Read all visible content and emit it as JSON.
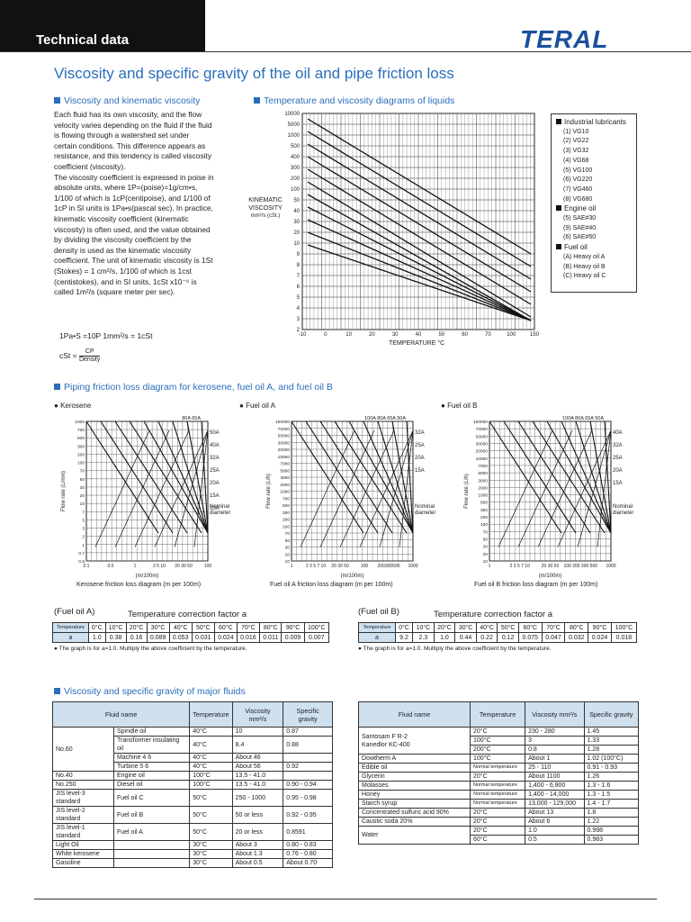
{
  "header": {
    "label": "Technical data",
    "logo": "TERAL"
  },
  "title": "Viscosity and specific gravity of the oil and pipe friction loss",
  "sections": {
    "visc": "Viscosity and kinematic viscosity",
    "temp_diag": "Temperature and viscosity diagrams of liquids",
    "piping": "Piping friction loss diagram for kerosene, fuel oil A, and fuel oil B",
    "major": "Viscosity and specific gravity of major fluids"
  },
  "body_text": [
    "Each fluid has its own viscosity, and the flow",
    "velocity varies depending on the fluid if the fluid",
    "is flowing through a watershed set under",
    "certain conditions. This difference appears as",
    "resistance, and this tendency is called viscosity",
    "coefficient (viscosity).",
    "The viscosity coefficient is expressed in poise in",
    "absolute units, where 1P=(poise)=1g/cm•s,",
    "1/100 of which is 1cP(centipoise), and 1/100 of",
    "1cP in SI units is 1Pa•s(pascal sec). In practice,",
    "kinematic viscosity coefficient (kinematic",
    "viscosity) is often used, and the value obtained",
    "by dividing the viscosity coefficient by the",
    "density is used as the kinematic viscosity",
    "coefficient. The unit of kinematic viscosity is 1St",
    "(Stokes) = 1 cm²/s, 1/100 of which is 1cst",
    "(centistokes), and in SI units,  1cSt x10⁻⁶ is",
    "called 1m²/s (square meter per sec)."
  ],
  "formula": {
    "line1": "1Pa•S =10P    1mm²/s = 1cSt",
    "cst": "cSt =",
    "num": "CP",
    "den": "Density"
  },
  "visc_chart": {
    "ylabel1": "KINEMATIC",
    "ylabel2": "VISCOSITY",
    "ylabel3": "mm²/s (cSt.)",
    "xlabel": "TEMPERATURE  °C",
    "yticks": [
      "10000",
      "5000",
      "1000",
      "500",
      "400",
      "300",
      "200",
      "100",
      "50",
      "40",
      "30",
      "20",
      "10",
      "9",
      "8",
      "7",
      "6",
      "5",
      "4",
      "3",
      "2"
    ],
    "xticks": [
      "-10",
      "0",
      "10",
      "20",
      "30",
      "40",
      "50",
      "60",
      "70",
      "100",
      "150"
    ]
  },
  "legend": {
    "industrial": "Industrial lubricants",
    "industrial_items": [
      "(1) VG10",
      "(2) VG22",
      "(3) VG32",
      "(4) VG68",
      "(5) VG100",
      "(6) VG220",
      "(7) VG460",
      "(8) VG680"
    ],
    "engine": "Engine oil",
    "engine_items": [
      "(5) SAE#30",
      "(9) SAE#40",
      "(6) SAE#50"
    ],
    "fuel": "Fuel oil",
    "fuel_items": [
      "(A) Heavy oil A",
      "(B) Heavy oil B",
      "(C) Heavy oil C"
    ]
  },
  "friction": {
    "kerosene": {
      "name": "Kerosene",
      "ylabel": "Flow rate (L/min)",
      "xlabel": "(m/100m)",
      "caption": "Kerosene friction loss diagram (m per 100m)",
      "nominal": [
        "Nominal",
        "diameter"
      ],
      "sizes": [
        "50A",
        "40A",
        "32A",
        "25A",
        "20A",
        "15A",
        "10A"
      ],
      "top_sizes": "80A  65A",
      "yticks": [
        "1000",
        "700",
        "500",
        "300",
        "200",
        "100",
        "70",
        "50",
        "30",
        "20",
        "10",
        "7",
        "5",
        "3",
        "2",
        "1",
        "0.7",
        "0.5"
      ],
      "xticks": [
        "0.1",
        "0.5",
        "1",
        "3  5  10",
        "20 30 50",
        "100"
      ]
    },
    "fuel_a": {
      "name": "Fuel oil A",
      "ylabel": "Flow rate (L/h)",
      "xlabel": "(m/100m)",
      "caption": "Fuel oil A friction loss diagram (m per 100m)",
      "nominal": [
        "Nominal",
        "diameter"
      ],
      "sizes": [
        "32A",
        "25A",
        "20A",
        "15A"
      ],
      "top_sizes": "100A  80A 65A  50A",
      "yticks": [
        "100000",
        "70000",
        "50000",
        "30000",
        "20000",
        "10000",
        "7000",
        "5000",
        "3000",
        "2000",
        "1000",
        "700",
        "500",
        "300",
        "200",
        "100",
        "70",
        "50",
        "30",
        "20",
        "10"
      ],
      "xticks": [
        "1",
        "2  3  5  7 10",
        "20 30  50",
        "100",
        "200300500",
        "1000"
      ]
    },
    "fuel_b": {
      "name": "Fuel oil B",
      "ylabel": "Flow rate (L/h)",
      "xlabel": "(m/100m)",
      "caption": "Fuel oil B friction loss diagram (m per 100m)",
      "nominal": [
        "Nominal",
        "diameter"
      ],
      "sizes": [
        "40A",
        "32A",
        "25A",
        "20A",
        "15A"
      ],
      "top_sizes": "100A  80A 65A   50A",
      "yticks": [
        "100000",
        "70000",
        "50000",
        "30000",
        "20000",
        "10000",
        "7000",
        "5000",
        "3000",
        "2000",
        "1000",
        "500",
        "300",
        "200",
        "100",
        "70",
        "50",
        "30",
        "20",
        "10"
      ],
      "xticks": [
        "1",
        "2  3  5 7 10",
        "20 30 50",
        "100 200 300 500",
        "1000"
      ]
    }
  },
  "tcf_a": {
    "label": "(Fuel oil A)",
    "title": "Temperature correction factor a",
    "header": [
      "Temperature",
      "0°C",
      "10°C",
      "20°C",
      "30°C",
      "40°C",
      "50°C",
      "60°C",
      "70°C",
      "80°C",
      "90°C",
      "100°C"
    ],
    "row": [
      "a",
      "1.0",
      "0.38",
      "0.16",
      "0.089",
      "0.053",
      "0.031",
      "0.024",
      "0.016",
      "0.011",
      "0.009",
      "0.007"
    ],
    "note": "The graph is for a=1.0. Multiply the above coefficient by the temperature."
  },
  "tcf_b": {
    "label": "(Fuel oil B)",
    "title": "Temperature correction factor a",
    "header": [
      "Temperature",
      "0°C",
      "10°C",
      "20°C",
      "30°C",
      "40°C",
      "50°C",
      "60°C",
      "70°C",
      "80°C",
      "90°C",
      "100°C"
    ],
    "row": [
      "a",
      "9.2",
      "2.3",
      "1.0",
      "0.44",
      "0.22",
      "0.12",
      "0.075",
      "0.047",
      "0.032",
      "0.024",
      "0.018"
    ],
    "note": "The graph is for a=1.0. Multiply the above coefficient by the temperature."
  },
  "fluids_left": {
    "header": [
      "Fluid name",
      "Temperature",
      "Viscosity mm²/s",
      "Specific gravity"
    ],
    "no60": "No.60",
    "no60_rows": [
      [
        "Spindle oil",
        "40°C",
        "10",
        "0.87"
      ],
      [
        "Transformer insulating oil",
        "40°C",
        "8.4",
        "0.88"
      ],
      [
        "Machine 4 6",
        "40°C",
        "About 46",
        ""
      ],
      [
        "Turbine 5 6",
        "40°C",
        "About 56",
        "0.92"
      ]
    ],
    "rows": [
      [
        "No.40",
        "Engine oil",
        "100°C",
        "13.5 - 41.0",
        ""
      ],
      [
        "No.250",
        "Diesel oil",
        "100°C",
        "13.5 - 41.0",
        "0.90 - 0.94"
      ],
      [
        "JIS level-3 standard",
        "Fuel oil C",
        "50°C",
        "250 - 1000",
        "0.95 - 0.98"
      ],
      [
        "JIS level-2 standard",
        "Fuel oil B",
        "50°C",
        "50 or less",
        "0.92 - 0.95"
      ],
      [
        "JIS level-1 standard",
        "Fuel oil A",
        "50°C",
        "20 or less",
        "0.8591"
      ],
      [
        "Light Oil",
        "",
        "30°C",
        "About 3",
        "0.80 - 0.83"
      ],
      [
        "White kerosene",
        "",
        "30°C",
        "About 1.3",
        "0.76 - 0.80"
      ],
      [
        "Gasoline",
        "",
        "30°C",
        "About 0.5",
        "About 0.70"
      ]
    ]
  },
  "fluids_right": {
    "header": [
      "Fluid name",
      "Temperature",
      "Viscosity mm²/s",
      "Specific gravity"
    ],
    "santosam1": "Santosam F R-2",
    "santosam2": "Kanedlor KC-400",
    "santosam_rows": [
      [
        "20°C",
        "230 - 280",
        "1.45"
      ],
      [
        "100°C",
        "3",
        "1.33"
      ],
      [
        "200°C",
        "0.8",
        "1.28"
      ]
    ],
    "rows": [
      [
        "Dowtherm A",
        "100°C",
        "About 1",
        "1.02 (100°C)"
      ],
      [
        "Edible oil",
        "Normal temperature",
        "25 - 110",
        "0.91 - 0.93"
      ],
      [
        "Glycerin",
        "20°C",
        "About 1100",
        "1.26"
      ],
      [
        "Molasses",
        "Normal temperature",
        "1,400 - 6,900",
        "1.3 - 1.6"
      ],
      [
        "Honey",
        "Normal temperature",
        "1,400 - 14,000",
        "1.3 - 1.5"
      ],
      [
        "Starch syrup",
        "Normal temperature",
        "13,000 - 129,000",
        "1.4 - 1.7"
      ],
      [
        "Concentrated sulfuric acid 90%",
        "20°C",
        "About 13",
        "1.8"
      ],
      [
        "Caustic soda 20%",
        "20°C",
        "About 6",
        "1.22"
      ]
    ],
    "water": "Water",
    "water_rows": [
      [
        "20°C",
        "1.0",
        "0.998"
      ],
      [
        "60°C",
        "0.5",
        "0.983"
      ]
    ]
  }
}
